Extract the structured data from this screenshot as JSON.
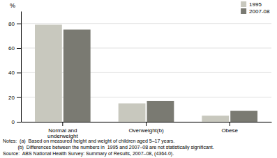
{
  "chart_data": {
    "type": "bar",
    "ylabel": "%",
    "categories": [
      "Normal and\nunderweight",
      "Overweight(b)",
      "Obese"
    ],
    "series": [
      {
        "name": "1995",
        "color": "#c8c8be",
        "values": [
          79,
          15,
          5
        ]
      },
      {
        "name": "2007-08",
        "color": "#7a7a72",
        "values": [
          75,
          17,
          9
        ]
      }
    ],
    "ylim": [
      0,
      90
    ],
    "yticks": [
      0,
      20,
      40,
      60,
      80
    ],
    "grid": true,
    "legend": "upper right",
    "annotations": [
      "Notes:  (a)  Based on measured height and weight of children aged 5–17 years.",
      "           (b)  Differences between the numbers in  1995 and 2007–08 are not statistically significant.",
      "Source:  ABS National Health Survey: Summary of Results, 2007–08, (4364.0)."
    ]
  }
}
